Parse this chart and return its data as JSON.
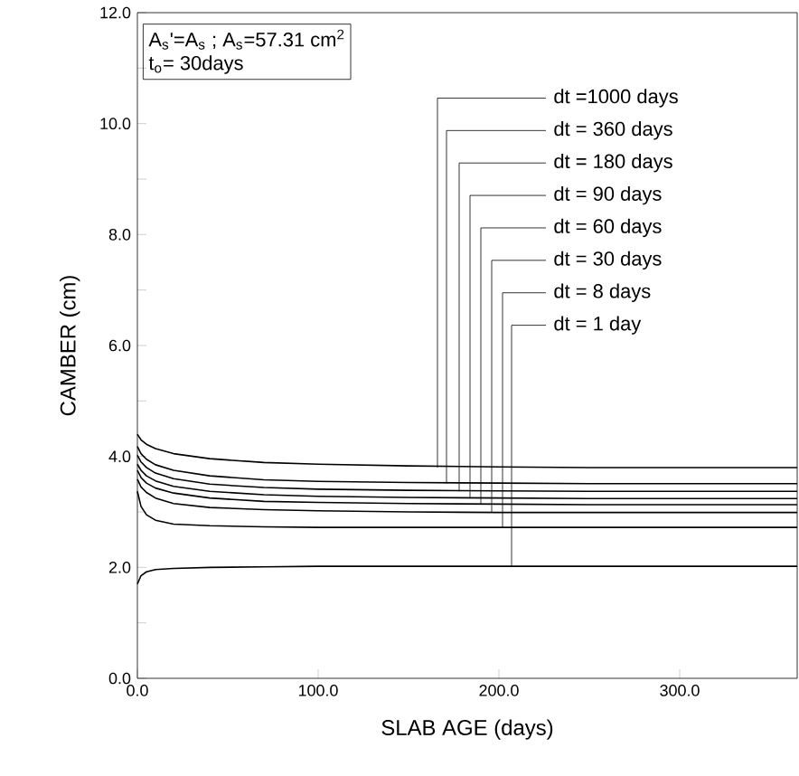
{
  "chart_data": {
    "type": "line",
    "xlabel": "SLAB AGE (days)",
    "ylabel": "CAMBER (cm)",
    "xlim": [
      0,
      365
    ],
    "ylim": [
      0,
      12
    ],
    "xticks": [
      {
        "value": 0,
        "label": "0.0"
      },
      {
        "value": 100,
        "label": "100.0"
      },
      {
        "value": 200,
        "label": "200.0"
      },
      {
        "value": 300,
        "label": "300.0"
      }
    ],
    "yticks": [
      {
        "value": 0,
        "label": "0.0"
      },
      {
        "value": 1,
        "label": null
      },
      {
        "value": 2,
        "label": "2.0"
      },
      {
        "value": 3,
        "label": null
      },
      {
        "value": 4,
        "label": "4.0"
      },
      {
        "value": 5,
        "label": null
      },
      {
        "value": 6,
        "label": "6.0"
      },
      {
        "value": 7,
        "label": null
      },
      {
        "value": 8,
        "label": "8.0"
      },
      {
        "value": 9,
        "label": null
      },
      {
        "value": 10,
        "label": "10.0"
      },
      {
        "value": 11,
        "label": null
      },
      {
        "value": 12,
        "label": "12.0"
      }
    ],
    "marker": "none",
    "line_style": "solid",
    "x": [
      0,
      2,
      5,
      10,
      20,
      40,
      70,
      100,
      150,
      200,
      250,
      300,
      365
    ],
    "series": [
      {
        "color": "#000000",
        "values": [
          4.4,
          4.3,
          4.22,
          4.14,
          4.05,
          3.96,
          3.89,
          3.86,
          3.83,
          3.81,
          3.8,
          3.8,
          3.8
        ]
      },
      {
        "color": "#000000",
        "values": [
          4.18,
          4.05,
          3.95,
          3.85,
          3.75,
          3.65,
          3.58,
          3.55,
          3.53,
          3.52,
          3.51,
          3.51,
          3.51
        ]
      },
      {
        "color": "#000000",
        "values": [
          4.02,
          3.9,
          3.8,
          3.7,
          3.6,
          3.5,
          3.44,
          3.41,
          3.39,
          3.38,
          3.37,
          3.37,
          3.37
        ]
      },
      {
        "color": "#000000",
        "values": [
          3.86,
          3.75,
          3.65,
          3.56,
          3.46,
          3.37,
          3.31,
          3.28,
          3.26,
          3.25,
          3.24,
          3.24,
          3.24
        ]
      },
      {
        "color": "#000000",
        "values": [
          3.75,
          3.62,
          3.52,
          3.43,
          3.34,
          3.25,
          3.19,
          3.17,
          3.15,
          3.14,
          3.13,
          3.13,
          3.13
        ]
      },
      {
        "color": "#000000",
        "values": [
          3.59,
          3.45,
          3.35,
          3.25,
          3.15,
          3.08,
          3.04,
          3.02,
          3.0,
          2.99,
          2.99,
          2.99,
          2.99
        ]
      },
      {
        "color": "#000000",
        "values": [
          3.37,
          3.1,
          2.95,
          2.85,
          2.78,
          2.75,
          2.73,
          2.72,
          2.72,
          2.72,
          2.72,
          2.72,
          2.72
        ]
      },
      {
        "color": "#000000",
        "values": [
          1.7,
          1.85,
          1.92,
          1.96,
          1.98,
          2.0,
          2.01,
          2.02,
          2.02,
          2.02,
          2.02,
          2.02,
          2.02
        ]
      }
    ],
    "annotations": [
      {
        "text": "dt =1000 days",
        "x": 166,
        "y": 3.8
      },
      {
        "text": "dt = 360 days",
        "x": 171,
        "y": 3.51
      },
      {
        "text": "dt = 180 days",
        "x": 178,
        "y": 3.37
      },
      {
        "text": "dt = 90 days",
        "x": 184,
        "y": 3.24
      },
      {
        "text": "dt = 60 days",
        "x": 190,
        "y": 3.13
      },
      {
        "text": "dt = 30 days",
        "x": 196,
        "y": 2.99
      },
      {
        "text": "dt = 8 days",
        "x": 202,
        "y": 2.72
      },
      {
        "text": "dt = 1 day",
        "x": 207,
        "y": 2.02
      },
      "A$_{s}$'=A$_{s}$ ; A$_{s}$=57.31 cm$^{2}$",
      "t$_{o}$= 30days"
    ]
  }
}
